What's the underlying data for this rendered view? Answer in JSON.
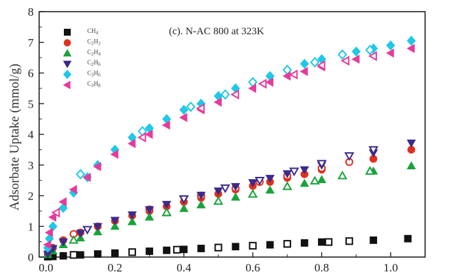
{
  "chart_data": {
    "type": "scatter",
    "title": "",
    "annotation": "(c). N-AC 800 at 323K",
    "xlabel": "",
    "ylabel": "Adsorbate Uptake (mmol/g)",
    "xlim": [
      -0.02,
      1.1
    ],
    "ylim": [
      0,
      8
    ],
    "xticks": [
      "0.0",
      "0.2",
      "0.4",
      "0.6",
      "0.8",
      "1.0"
    ],
    "yticks": [
      "0",
      "1",
      "2",
      "3",
      "4",
      "5",
      "6",
      "7",
      "8"
    ],
    "grid": false,
    "legend_position": "top-left",
    "series": [
      {
        "name": "CH4",
        "label_base": "CH",
        "label_sub": "4",
        "marker": "square",
        "color": "#111111",
        "adsorption": [
          [
            0.005,
            0.01
          ],
          [
            0.02,
            0.02
          ],
          [
            0.05,
            0.04
          ],
          [
            0.1,
            0.07
          ],
          [
            0.15,
            0.1
          ],
          [
            0.2,
            0.13
          ],
          [
            0.25,
            0.16
          ],
          [
            0.3,
            0.19
          ],
          [
            0.35,
            0.22
          ],
          [
            0.4,
            0.25
          ],
          [
            0.45,
            0.28
          ],
          [
            0.5,
            0.31
          ],
          [
            0.55,
            0.34
          ],
          [
            0.6,
            0.37
          ],
          [
            0.65,
            0.4
          ],
          [
            0.7,
            0.43
          ],
          [
            0.75,
            0.46
          ],
          [
            0.8,
            0.49
          ],
          [
            0.95,
            0.55
          ],
          [
            1.05,
            0.6
          ]
        ],
        "desorption": [
          [
            0.08,
            0.07
          ],
          [
            0.25,
            0.16
          ],
          [
            0.38,
            0.24
          ],
          [
            0.5,
            0.31
          ],
          [
            0.6,
            0.37
          ],
          [
            0.7,
            0.43
          ],
          [
            0.82,
            0.49
          ],
          [
            0.88,
            0.52
          ]
        ]
      },
      {
        "name": "C2H2",
        "label_base": "C",
        "label_sub": "2",
        "label_mid": "H",
        "label_sub2": "2",
        "marker": "circle",
        "color": "#e0301e",
        "adsorption": [
          [
            0.005,
            0.1
          ],
          [
            0.02,
            0.3
          ],
          [
            0.05,
            0.55
          ],
          [
            0.1,
            0.8
          ],
          [
            0.15,
            1.0
          ],
          [
            0.2,
            1.18
          ],
          [
            0.25,
            1.35
          ],
          [
            0.3,
            1.5
          ],
          [
            0.35,
            1.65
          ],
          [
            0.4,
            1.8
          ],
          [
            0.45,
            1.93
          ],
          [
            0.5,
            2.06
          ],
          [
            0.55,
            2.2
          ],
          [
            0.6,
            2.32
          ],
          [
            0.65,
            2.45
          ],
          [
            0.7,
            2.58
          ],
          [
            0.75,
            2.7
          ],
          [
            0.8,
            2.85
          ],
          [
            0.95,
            3.2
          ],
          [
            1.06,
            3.5
          ]
        ],
        "desorption": [
          [
            0.08,
            0.75
          ],
          [
            0.3,
            1.55
          ],
          [
            0.45,
            2.0
          ],
          [
            0.55,
            2.25
          ],
          [
            0.62,
            2.45
          ],
          [
            0.7,
            2.65
          ],
          [
            0.8,
            2.9
          ],
          [
            0.88,
            3.1
          ]
        ]
      },
      {
        "name": "C2H4",
        "label_base": "C",
        "label_sub": "2",
        "label_mid": "H",
        "label_sub2": "4",
        "marker": "triangle-up",
        "color": "#1aa33c",
        "adsorption": [
          [
            0.005,
            0.08
          ],
          [
            0.02,
            0.2
          ],
          [
            0.05,
            0.4
          ],
          [
            0.1,
            0.62
          ],
          [
            0.15,
            0.82
          ],
          [
            0.2,
            1.0
          ],
          [
            0.25,
            1.15
          ],
          [
            0.3,
            1.3
          ],
          [
            0.35,
            1.44
          ],
          [
            0.4,
            1.58
          ],
          [
            0.45,
            1.7
          ],
          [
            0.5,
            1.82
          ],
          [
            0.55,
            1.95
          ],
          [
            0.6,
            2.06
          ],
          [
            0.65,
            2.18
          ],
          [
            0.7,
            2.3
          ],
          [
            0.75,
            2.4
          ],
          [
            0.8,
            2.52
          ],
          [
            0.95,
            2.8
          ],
          [
            1.06,
            2.97
          ]
        ],
        "desorption": [
          [
            0.08,
            0.55
          ],
          [
            0.35,
            1.45
          ],
          [
            0.5,
            1.82
          ],
          [
            0.6,
            2.05
          ],
          [
            0.7,
            2.3
          ],
          [
            0.78,
            2.48
          ],
          [
            0.86,
            2.65
          ],
          [
            0.94,
            2.8
          ]
        ]
      },
      {
        "name": "C2H6",
        "label_base": "C",
        "label_sub": "2",
        "label_mid": "H",
        "label_sub2": "6",
        "marker": "triangle-down",
        "color": "#3a2a8c",
        "adsorption": [
          [
            0.005,
            0.1
          ],
          [
            0.02,
            0.28
          ],
          [
            0.05,
            0.5
          ],
          [
            0.1,
            0.78
          ],
          [
            0.15,
            1.0
          ],
          [
            0.2,
            1.2
          ],
          [
            0.25,
            1.38
          ],
          [
            0.3,
            1.55
          ],
          [
            0.35,
            1.72
          ],
          [
            0.4,
            1.88
          ],
          [
            0.45,
            2.02
          ],
          [
            0.5,
            2.16
          ],
          [
            0.55,
            2.3
          ],
          [
            0.6,
            2.43
          ],
          [
            0.65,
            2.57
          ],
          [
            0.7,
            2.72
          ],
          [
            0.75,
            2.85
          ],
          [
            0.8,
            3.0
          ],
          [
            0.95,
            3.4
          ],
          [
            1.06,
            3.72
          ]
        ],
        "desorption": [
          [
            0.12,
            0.9
          ],
          [
            0.4,
            1.9
          ],
          [
            0.52,
            2.25
          ],
          [
            0.62,
            2.5
          ],
          [
            0.72,
            2.8
          ],
          [
            0.8,
            3.05
          ],
          [
            0.88,
            3.3
          ],
          [
            0.95,
            3.5
          ]
        ]
      },
      {
        "name": "C3H6",
        "label_base": "C",
        "label_sub": "3",
        "label_mid": "H",
        "label_sub2": "6",
        "marker": "diamond",
        "color": "#1ec8e8",
        "adsorption": [
          [
            0.005,
            0.3
          ],
          [
            0.01,
            0.6
          ],
          [
            0.02,
            1.0
          ],
          [
            0.05,
            1.6
          ],
          [
            0.08,
            2.1
          ],
          [
            0.12,
            2.6
          ],
          [
            0.15,
            3.0
          ],
          [
            0.2,
            3.5
          ],
          [
            0.25,
            3.9
          ],
          [
            0.3,
            4.2
          ],
          [
            0.35,
            4.5
          ],
          [
            0.4,
            4.8
          ],
          [
            0.45,
            5.0
          ],
          [
            0.5,
            5.25
          ],
          [
            0.55,
            5.5
          ],
          [
            0.6,
            5.7
          ],
          [
            0.65,
            5.9
          ],
          [
            0.7,
            6.1
          ],
          [
            0.75,
            6.3
          ],
          [
            0.8,
            6.45
          ],
          [
            0.9,
            6.7
          ],
          [
            0.95,
            6.8
          ],
          [
            1.0,
            6.9
          ],
          [
            1.06,
            7.05
          ]
        ],
        "desorption": [
          [
            0.1,
            2.7
          ],
          [
            0.28,
            4.1
          ],
          [
            0.42,
            4.9
          ],
          [
            0.52,
            5.3
          ],
          [
            0.6,
            5.7
          ],
          [
            0.7,
            6.1
          ],
          [
            0.78,
            6.35
          ],
          [
            0.86,
            6.6
          ],
          [
            0.94,
            6.75
          ]
        ]
      },
      {
        "name": "C3H8",
        "label_base": "C",
        "label_sub": "3",
        "label_mid": "H",
        "label_sub2": "8",
        "marker": "triangle-left",
        "color": "#e83a9a",
        "adsorption": [
          [
            0.005,
            0.4
          ],
          [
            0.01,
            0.8
          ],
          [
            0.02,
            1.3
          ],
          [
            0.05,
            1.8
          ],
          [
            0.08,
            2.2
          ],
          [
            0.12,
            2.6
          ],
          [
            0.15,
            2.95
          ],
          [
            0.2,
            3.35
          ],
          [
            0.25,
            3.7
          ],
          [
            0.3,
            4.0
          ],
          [
            0.35,
            4.3
          ],
          [
            0.4,
            4.55
          ],
          [
            0.45,
            4.8
          ],
          [
            0.5,
            5.05
          ],
          [
            0.55,
            5.3
          ],
          [
            0.6,
            5.5
          ],
          [
            0.65,
            5.7
          ],
          [
            0.7,
            5.9
          ],
          [
            0.75,
            6.05
          ],
          [
            0.8,
            6.2
          ],
          [
            0.9,
            6.45
          ],
          [
            0.95,
            6.55
          ],
          [
            1.0,
            6.65
          ],
          [
            1.06,
            6.8
          ]
        ],
        "desorption": [
          [
            0.03,
            1.45
          ],
          [
            0.28,
            3.9
          ],
          [
            0.45,
            4.85
          ],
          [
            0.55,
            5.3
          ],
          [
            0.63,
            5.65
          ],
          [
            0.72,
            5.95
          ],
          [
            0.8,
            6.25
          ],
          [
            0.87,
            6.4
          ],
          [
            0.95,
            6.55
          ]
        ]
      }
    ]
  }
}
